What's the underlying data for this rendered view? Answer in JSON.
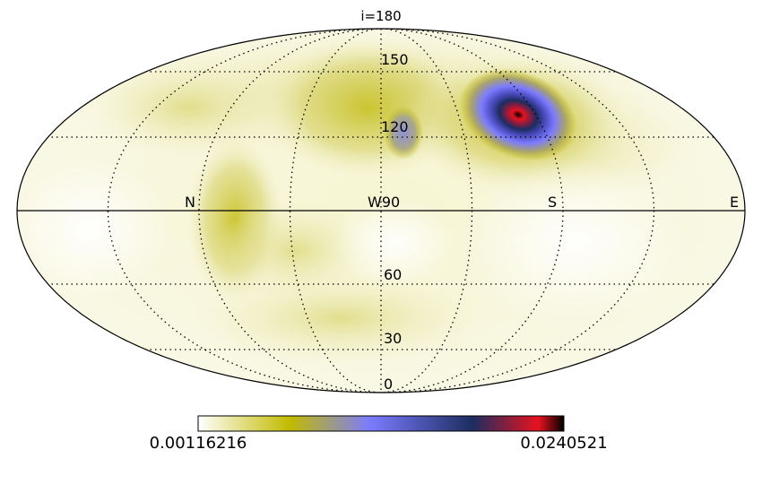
{
  "chart_data": {
    "type": "heatmap",
    "projection": "mollweide",
    "title": "i=180",
    "latitude_labels": [
      "150",
      "120",
      "W90",
      "60",
      "30",
      "0"
    ],
    "longitude_labels": [
      "N",
      "S",
      "E"
    ],
    "colorbar": {
      "min_label": "0.00116216",
      "max_label": "0.0240521",
      "min": 0.00116216,
      "max": 0.0240521,
      "colormap": [
        "#ffffff",
        "#c2bb00",
        "#7b7bff",
        "#1c2d60",
        "#e8121e",
        "#000000"
      ]
    },
    "graticule": {
      "style": "dotted",
      "grid": true
    },
    "features": [
      {
        "name": "peak",
        "value": 0.0240521
      },
      {
        "name": "secondary-blob",
        "value": 0.009
      }
    ]
  }
}
